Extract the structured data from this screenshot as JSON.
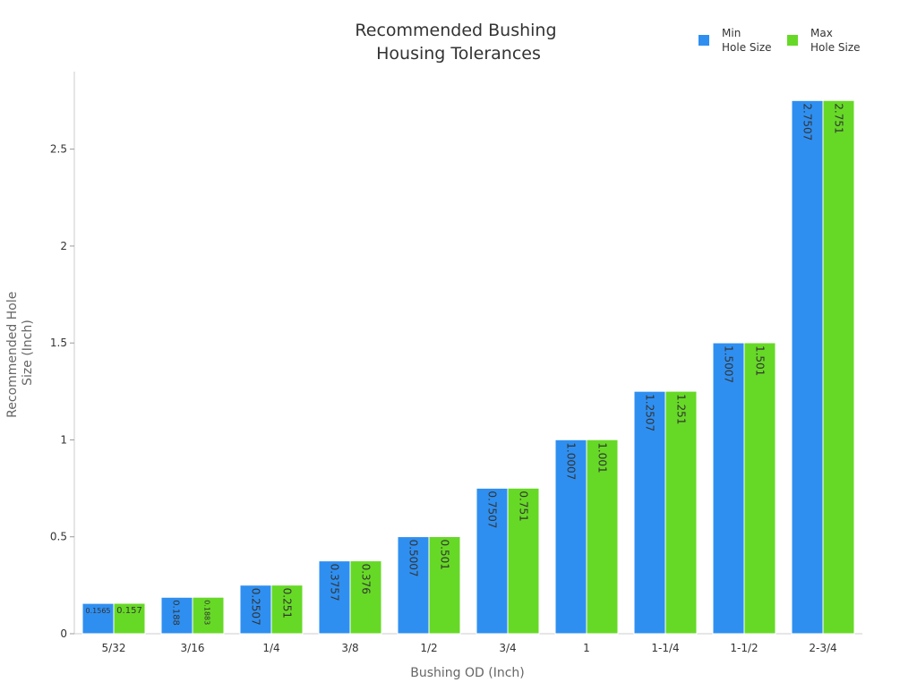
{
  "chart_data": {
    "type": "bar",
    "title_lines": [
      "Recommended Bushing",
      "Housing Tolerances"
    ],
    "xlabel": "Bushing OD (Inch)",
    "ylabel_lines": [
      "Recommended Hole",
      "Size (Inch)"
    ],
    "categories": [
      "5/32",
      "3/16",
      "1/4",
      "3/8",
      "1/2",
      "3/4",
      "1",
      "1-1/4",
      "1-1/2",
      "2-3/4"
    ],
    "series": [
      {
        "name_lines": [
          "Min",
          "Hole Size"
        ],
        "color": "#2f8ff0",
        "values": [
          0.1565,
          0.188,
          0.2507,
          0.3757,
          0.5007,
          0.7507,
          1.0007,
          1.2507,
          1.5007,
          2.7507
        ],
        "labels": [
          "0.1565",
          "0.188",
          "0.2507",
          "0.3757",
          "0.5007",
          "0.7507",
          "1.0007",
          "1.2507",
          "1.5007",
          "2.7507"
        ]
      },
      {
        "name_lines": [
          "Max",
          "Hole Size"
        ],
        "color": "#66d926",
        "values": [
          0.157,
          0.1883,
          0.251,
          0.376,
          0.501,
          0.751,
          1.001,
          1.251,
          1.501,
          2.751
        ],
        "labels": [
          "0.157",
          "0.1883",
          "0.251",
          "0.376",
          "0.501",
          "0.751",
          "1.001",
          "1.251",
          "1.501",
          "2.751"
        ]
      }
    ],
    "yticks": [
      0,
      0.5,
      1,
      1.5,
      2,
      2.5
    ],
    "ytick_labels": [
      "0",
      "0.5",
      "1",
      "1.5",
      "2",
      "2.5"
    ],
    "ylim": [
      0,
      2.9
    ],
    "grid": false,
    "legend_position": "top-right"
  }
}
